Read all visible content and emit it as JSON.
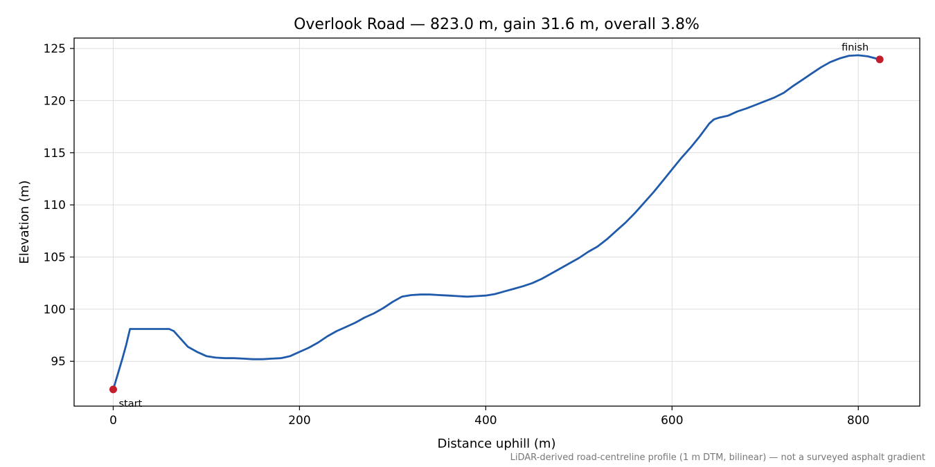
{
  "chart_data": {
    "type": "line",
    "title": "Overlook Road — 823.0 m, gain 31.6 m, overall 3.8%",
    "xlabel": "Distance uphill (m)",
    "ylabel": "Elevation (m)",
    "xlim": [
      -42,
      866
    ],
    "ylim": [
      90.7,
      126.0
    ],
    "x_ticks": [
      0,
      200,
      400,
      600,
      800
    ],
    "y_ticks": [
      95,
      100,
      105,
      110,
      115,
      120,
      125
    ],
    "grid": true,
    "line_color": "#1f5aab",
    "marker_color": "#c41e2e",
    "series": [
      {
        "x": [
          0,
          5,
          10,
          14,
          18,
          20,
          30,
          40,
          50,
          60,
          65,
          70,
          80,
          90,
          100,
          110,
          120,
          130,
          140,
          150,
          160,
          170,
          180,
          190,
          200,
          210,
          220,
          230,
          240,
          250,
          260,
          270,
          280,
          290,
          300,
          310,
          320,
          330,
          340,
          350,
          360,
          370,
          380,
          390,
          400,
          410,
          420,
          430,
          440,
          450,
          460,
          470,
          480,
          490,
          500,
          510,
          520,
          530,
          540,
          550,
          560,
          570,
          580,
          590,
          600,
          610,
          620,
          630,
          640,
          645,
          650,
          655,
          660,
          670,
          680,
          690,
          700,
          710,
          720,
          730,
          740,
          750,
          760,
          770,
          780,
          790,
          800,
          810,
          823
        ],
        "y": [
          92.3,
          93.8,
          95.3,
          96.6,
          98.1,
          98.1,
          98.1,
          98.1,
          98.1,
          98.1,
          97.9,
          97.4,
          96.4,
          95.9,
          95.5,
          95.35,
          95.3,
          95.3,
          95.25,
          95.2,
          95.2,
          95.25,
          95.3,
          95.5,
          95.9,
          96.3,
          96.8,
          97.4,
          97.9,
          98.3,
          98.7,
          99.2,
          99.6,
          100.1,
          100.7,
          101.2,
          101.35,
          101.4,
          101.4,
          101.35,
          101.3,
          101.25,
          101.2,
          101.25,
          101.3,
          101.45,
          101.7,
          101.95,
          102.2,
          102.5,
          102.9,
          103.4,
          103.9,
          104.4,
          104.9,
          105.5,
          106.0,
          106.7,
          107.5,
          108.3,
          109.2,
          110.2,
          111.2,
          112.3,
          113.4,
          114.5,
          115.5,
          116.6,
          117.8,
          118.2,
          118.35,
          118.45,
          118.55,
          118.95,
          119.25,
          119.6,
          119.95,
          120.3,
          120.75,
          121.4,
          122.0,
          122.6,
          123.2,
          123.7,
          124.05,
          124.3,
          124.35,
          124.25,
          123.95
        ]
      }
    ],
    "annotations": [
      {
        "text": "start",
        "x": 0,
        "y": 92.3
      },
      {
        "text": "finish",
        "x": 823,
        "y": 123.95
      }
    ],
    "footnote": "LiDAR-derived road-centreline profile (1 m DTM, bilinear) — not a surveyed asphalt gradient"
  }
}
